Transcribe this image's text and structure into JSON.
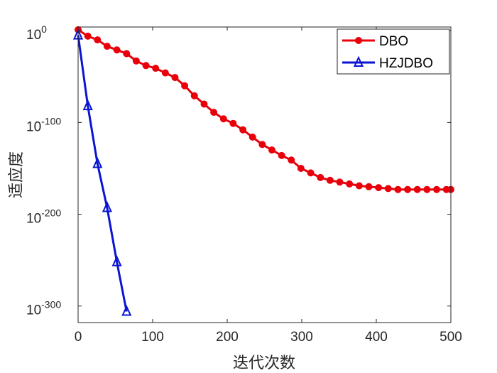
{
  "chart_data": {
    "type": "line",
    "title": "",
    "xlabel": "迭代次数",
    "ylabel": "适应度",
    "xlim": [
      0,
      500
    ],
    "ylim_exponent": [
      -318,
      4
    ],
    "yscale": "log",
    "grid": false,
    "legend_position": "top-right",
    "x_ticks": [
      {
        "value": 0,
        "label": "0"
      },
      {
        "value": 100,
        "label": "100"
      },
      {
        "value": 200,
        "label": "200"
      },
      {
        "value": 300,
        "label": "300"
      },
      {
        "value": 400,
        "label": "400"
      },
      {
        "value": 500,
        "label": "500"
      }
    ],
    "y_ticks": [
      {
        "exponent": 0,
        "base": "10",
        "power": "0"
      },
      {
        "exponent": -100,
        "base": "10",
        "power": "-100"
      },
      {
        "exponent": -200,
        "base": "10",
        "power": "-200"
      },
      {
        "exponent": -300,
        "base": "10",
        "power": "-300"
      }
    ],
    "series": [
      {
        "name": "DBO",
        "color": "#e8000b",
        "marker": "circle",
        "x": [
          0,
          13,
          26,
          39,
          52,
          65,
          78,
          91,
          104,
          117,
          130,
          143,
          156,
          169,
          182,
          195,
          208,
          221,
          234,
          247,
          260,
          273,
          286,
          299,
          312,
          325,
          338,
          351,
          364,
          377,
          390,
          403,
          416,
          429,
          442,
          455,
          468,
          481,
          494,
          500
        ],
        "log10_y": [
          1,
          -6,
          -10,
          -17,
          -21,
          -25,
          -33,
          -38,
          -41,
          -46,
          -51,
          -60,
          -71,
          -80,
          -89,
          -96,
          -101,
          -108,
          -116,
          -124,
          -130,
          -136,
          -141,
          -150,
          -155,
          -160,
          -163,
          -165,
          -167,
          -169,
          -170,
          -171,
          -172,
          -173,
          -173,
          -173,
          -173,
          -173,
          -173,
          -173
        ]
      },
      {
        "name": "HZJDBO",
        "color": "#0a14d2",
        "marker": "triangle",
        "x": [
          0,
          13,
          26,
          39,
          52,
          65
        ],
        "log10_y": [
          -5,
          -82,
          -145,
          -193,
          -252,
          -306
        ]
      }
    ]
  }
}
